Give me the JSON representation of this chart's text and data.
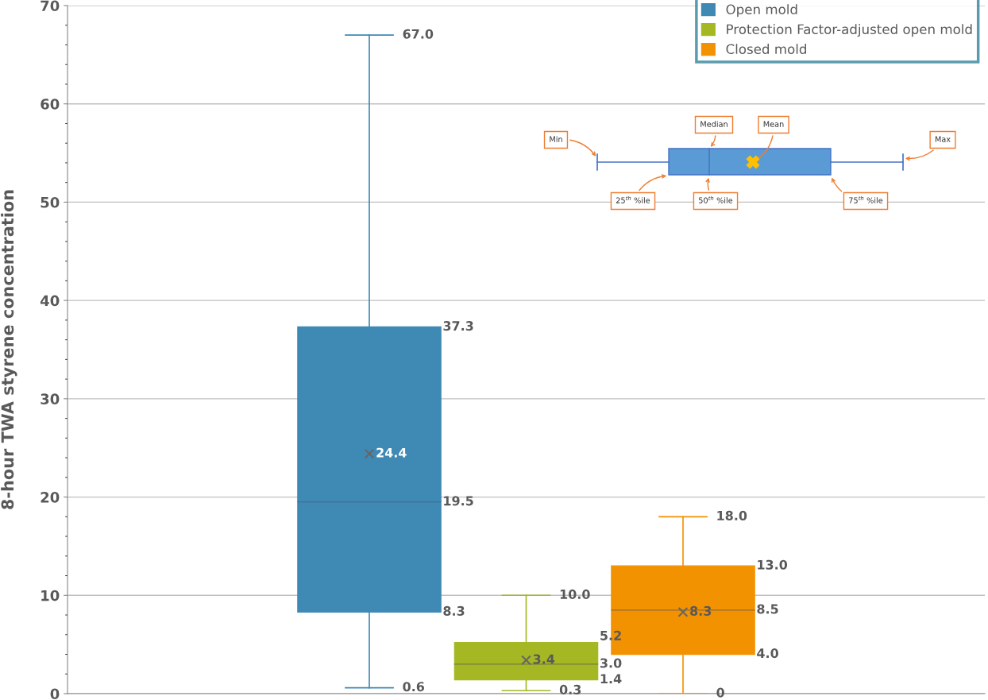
{
  "chart_data": {
    "type": "box",
    "ylabel": "8-hour TWA styrene concentration",
    "categories": [
      null
    ],
    "series": [
      {
        "name": "Open mold",
        "color": "#3f89b5",
        "boxes": [
          {
            "low": 0.6,
            "q1": 8.3,
            "median": 19.5,
            "q3": 37.3,
            "high": 67.0,
            "mean": 24.4
          }
        ]
      },
      {
        "name": "Protection Factor-adjusted open mold",
        "color": "#a5b823",
        "boxes": [
          {
            "low": 0.3,
            "q1": 1.4,
            "median": 3.0,
            "q3": 5.2,
            "high": 10.0,
            "mean": 3.4
          }
        ]
      },
      {
        "name": "Closed mold",
        "color": "#f39200",
        "boxes": [
          {
            "low": 0,
            "q1": 4.0,
            "median": 8.5,
            "q3": 13.0,
            "high": 18.0,
            "mean": 8.3
          }
        ]
      }
    ],
    "ylim": [
      0,
      70
    ],
    "yticks": [
      0,
      10,
      20,
      30,
      40,
      50,
      60,
      70
    ],
    "grid": "y",
    "legend": "top right",
    "annotations": [
      "Min",
      "Median",
      "Mean",
      "Max",
      "25$^{th}$ %ile",
      "50$^{th}$ %ile",
      "75$^{th}$ %ile",
      "0.6",
      "8.3",
      "19.5",
      "37.3",
      "67.0",
      "24.4",
      "0.3",
      "1.4",
      "3.0",
      "5.2",
      "10.0",
      "3.4",
      "0",
      "4.0",
      "8.5",
      "13.0",
      "18.0",
      "8.3"
    ]
  }
}
